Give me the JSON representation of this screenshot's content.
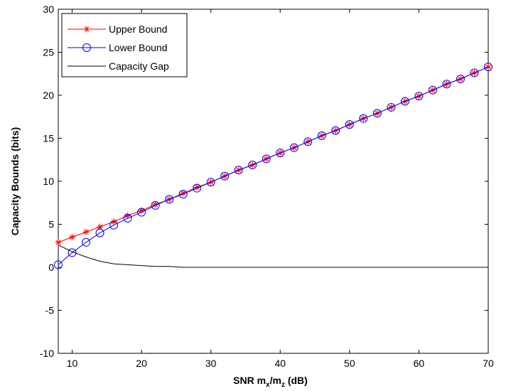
{
  "chart_data": {
    "type": "line",
    "xlabel": {
      "main": "SNR m",
      "sub1": "x",
      "mid": "/m",
      "sub2": "z",
      "tail": " (dB)"
    },
    "ylabel": "Capacity Bounds (bits)",
    "xlim": [
      8,
      70
    ],
    "ylim": [
      -10,
      30
    ],
    "xticks": [
      10,
      20,
      30,
      40,
      50,
      60,
      70
    ],
    "yticks": [
      -10,
      -5,
      0,
      5,
      10,
      15,
      20,
      25,
      30
    ],
    "grid": false,
    "legend_position": "top-left",
    "x": [
      8,
      10,
      12,
      14,
      16,
      18,
      20,
      22,
      24,
      26,
      28,
      30,
      32,
      34,
      36,
      38,
      40,
      42,
      44,
      46,
      48,
      50,
      52,
      54,
      56,
      58,
      60,
      62,
      64,
      66,
      68,
      70
    ],
    "series": [
      {
        "name": "Upper Bound",
        "color": "#ff0000",
        "marker": "asterisk",
        "values": [
          2.9,
          3.5,
          4.1,
          4.7,
          5.3,
          6.0,
          6.6,
          7.3,
          7.9,
          8.6,
          9.3,
          9.9,
          10.6,
          11.3,
          11.9,
          12.6,
          13.3,
          13.9,
          14.6,
          15.3,
          15.9,
          16.6,
          17.3,
          17.9,
          18.6,
          19.3,
          19.9,
          20.6,
          21.3,
          21.9,
          22.6,
          23.3
        ]
      },
      {
        "name": "Lower Bound",
        "color": "#0000ff",
        "marker": "circle",
        "values": [
          0.3,
          1.7,
          2.9,
          4.0,
          4.9,
          5.7,
          6.4,
          7.2,
          7.9,
          8.5,
          9.2,
          9.9,
          10.6,
          11.3,
          11.9,
          12.6,
          13.3,
          13.9,
          14.6,
          15.3,
          15.9,
          16.6,
          17.3,
          17.9,
          18.6,
          19.3,
          19.9,
          20.6,
          21.3,
          21.9,
          22.6,
          23.3
        ]
      },
      {
        "name": "Capacity Gap",
        "color": "#000000",
        "marker": "none",
        "values": [
          2.6,
          1.8,
          1.2,
          0.7,
          0.4,
          0.3,
          0.2,
          0.1,
          0.1,
          0.0,
          0.0,
          0.0,
          0.0,
          0.0,
          0.0,
          0.0,
          0.0,
          0.0,
          0.0,
          0.0,
          0.0,
          0.0,
          0.0,
          0.0,
          0.0,
          0.0,
          0.0,
          0.0,
          0.0,
          0.0,
          0.0,
          0.0
        ]
      }
    ]
  }
}
